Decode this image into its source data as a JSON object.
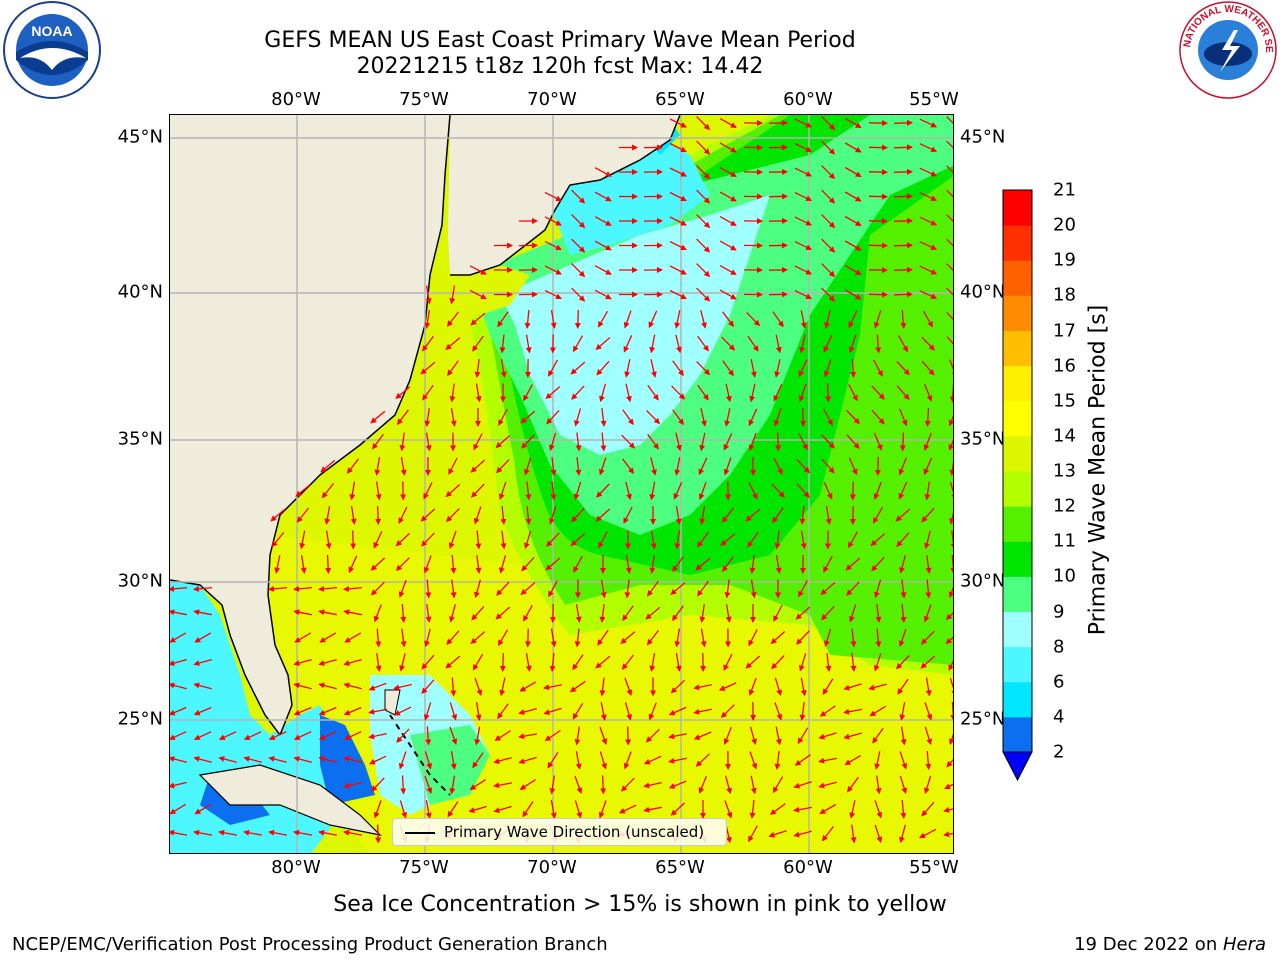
{
  "title_line1": "GEFS MEAN US East Coast Primary Wave Mean Period",
  "title_line2": "20221215 t18z 120h fcst   Max: 14.42",
  "lon_labels": [
    "80°W",
    "75°W",
    "70°W",
    "65°W",
    "60°W",
    "55°W"
  ],
  "lat_labels": [
    "45°N",
    "40°N",
    "35°N",
    "30°N",
    "25°N"
  ],
  "colorbar": {
    "title": "Primary Wave Mean Period [s]",
    "ticks": [
      "2",
      "4",
      "6",
      "8",
      "9",
      "10",
      "11",
      "12",
      "13",
      "14",
      "15",
      "16",
      "17",
      "18",
      "19",
      "20",
      "21"
    ],
    "colors": [
      "#0b6ff0",
      "#00e6ff",
      "#4cf7ff",
      "#a0ffff",
      "#4dff80",
      "#00e600",
      "#55f000",
      "#b3ff00",
      "#dcf700",
      "#ffff00",
      "#fff000",
      "#ffbf00",
      "#ff8c00",
      "#ff6000",
      "#ff3000",
      "#ff0000"
    ],
    "under_color": "#0000ff"
  },
  "legend_label": "Primary Wave Direction (unscaled)",
  "subtitle": "Sea Ice Concentration > 15% is shown in pink to yellow",
  "credit": "NCEP/EMC/Verification Post Processing Product Generation Branch",
  "date_text": "19 Dec 2022 on ",
  "machine": "Hera",
  "logos": {
    "noaa_text": "NOAA",
    "nws_text": "NATIONAL WEATHER SERVICE"
  },
  "map_colors": {
    "land": "#efecdc",
    "grid": "#b4b4b4",
    "arrows": "#ff0000"
  }
}
